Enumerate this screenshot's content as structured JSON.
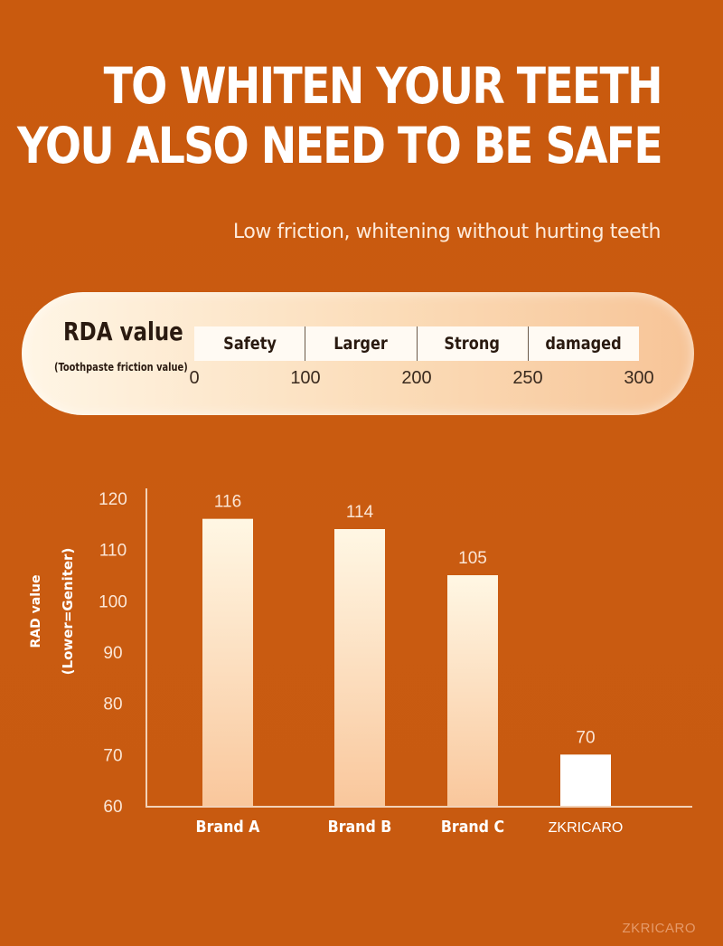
{
  "header": {
    "title_line1": "TO WHITEN YOUR TEETH",
    "title_line2": "YOU ALSO NEED TO BE SAFE",
    "subtitle": "Low friction, whitening without hurting teeth"
  },
  "rda_scale": {
    "title": "RDA value",
    "subtitle": "(Toothpaste friction value)",
    "segments": [
      "Safety",
      "Larger",
      "Strong",
      "damaged"
    ],
    "ticks": [
      "0",
      "100",
      "200",
      "250",
      "300"
    ]
  },
  "chart_data": {
    "type": "bar",
    "categories": [
      "Brand A",
      "Brand B",
      "Brand C",
      "ZKRICARO"
    ],
    "values": [
      116,
      114,
      105,
      70
    ],
    "ylabel_line1": "RAD value",
    "ylabel_line2": "(Lower=Geniter)",
    "ylim": [
      60,
      120
    ],
    "yticks": [
      120,
      110,
      100,
      90,
      80,
      70,
      60
    ],
    "grid": false
  },
  "watermark": "ZKRICARO",
  "colors": {
    "background": "#c95a0e",
    "bar_gradient_top": "#fff7e4",
    "bar_gradient_bottom": "#f9c79c",
    "highlight_bar": "#ffffff"
  }
}
